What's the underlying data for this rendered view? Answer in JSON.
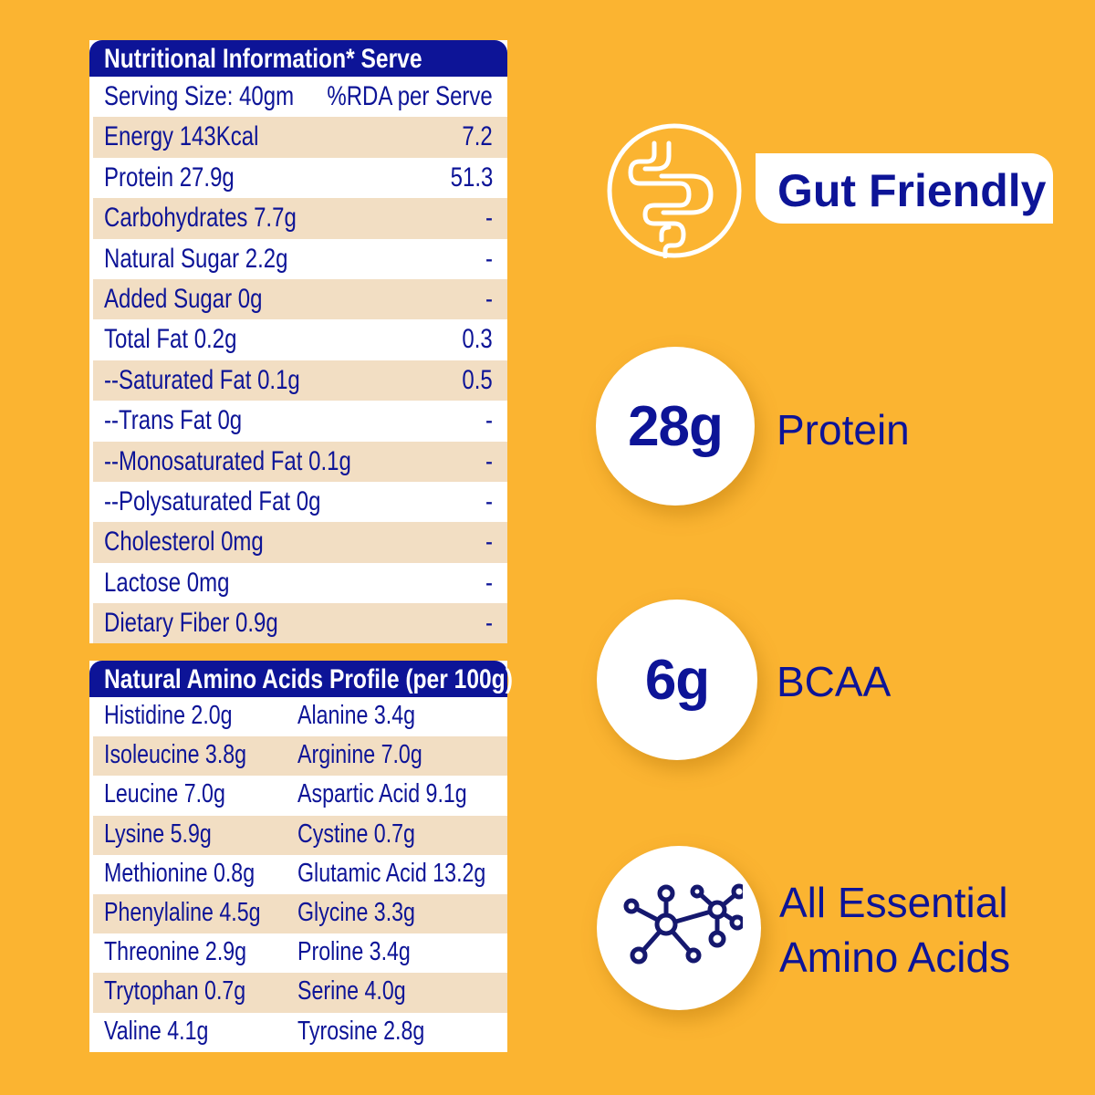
{
  "nutrition": {
    "title": "Nutritional Information* Serve",
    "header_row": {
      "label": "Serving Size: 40gm",
      "value": "%RDA per Serve"
    },
    "rows": [
      {
        "label": "Energy 143Kcal",
        "value": "7.2"
      },
      {
        "label": "Protein 27.9g",
        "value": "51.3"
      },
      {
        "label": "Carbohydrates 7.7g",
        "value": "-"
      },
      {
        "label": "Natural Sugar 2.2g",
        "value": "-"
      },
      {
        "label": "Added Sugar 0g",
        "value": "-"
      },
      {
        "label": "Total Fat 0.2g",
        "value": "0.3"
      },
      {
        "label": "--Saturated Fat 0.1g",
        "value": "0.5"
      },
      {
        "label": "--Trans Fat 0g",
        "value": "-"
      },
      {
        "label": "--Monosaturated Fat 0.1g",
        "value": "-"
      },
      {
        "label": "--Polysaturated Fat 0g",
        "value": "-"
      },
      {
        "label": "Cholesterol 0mg",
        "value": "-"
      },
      {
        "label": "Lactose 0mg",
        "value": "-"
      },
      {
        "label": "Dietary Fiber 0.9g",
        "value": "-"
      }
    ]
  },
  "amino": {
    "title": "Natural Amino Acids Profile (per 100g)",
    "rows": [
      [
        "Histidine 2.0g",
        "Alanine 3.4g"
      ],
      [
        "Isoleucine 3.8g",
        "Arginine 7.0g"
      ],
      [
        "Leucine 7.0g",
        "Aspartic Acid 9.1g"
      ],
      [
        "Lysine 5.9g",
        "Cystine 0.7g"
      ],
      [
        "Methionine 0.8g",
        "Glutamic Acid 13.2g"
      ],
      [
        "Phenylaline 4.5g",
        "Glycine 3.3g"
      ],
      [
        "Threonine 2.9g",
        "Proline 3.4g"
      ],
      [
        "Trytophan 0.7g",
        "Serine 4.0g"
      ],
      [
        "Valine 4.1g",
        "Tyrosine 2.8g"
      ]
    ]
  },
  "features": {
    "gut": {
      "label": "Gut Friendly",
      "icon": "intestine-icon"
    },
    "protein": {
      "value": "28g",
      "label": "Protein"
    },
    "bcaa": {
      "value": "6g",
      "label": "BCAA"
    },
    "amino": {
      "line1": "All Essential",
      "line2": "Amino Acids",
      "icon": "molecule-icon"
    }
  },
  "colors": {
    "background": "#FBB431",
    "navy": "#0D1497",
    "stripe": "#F2DEC3"
  }
}
